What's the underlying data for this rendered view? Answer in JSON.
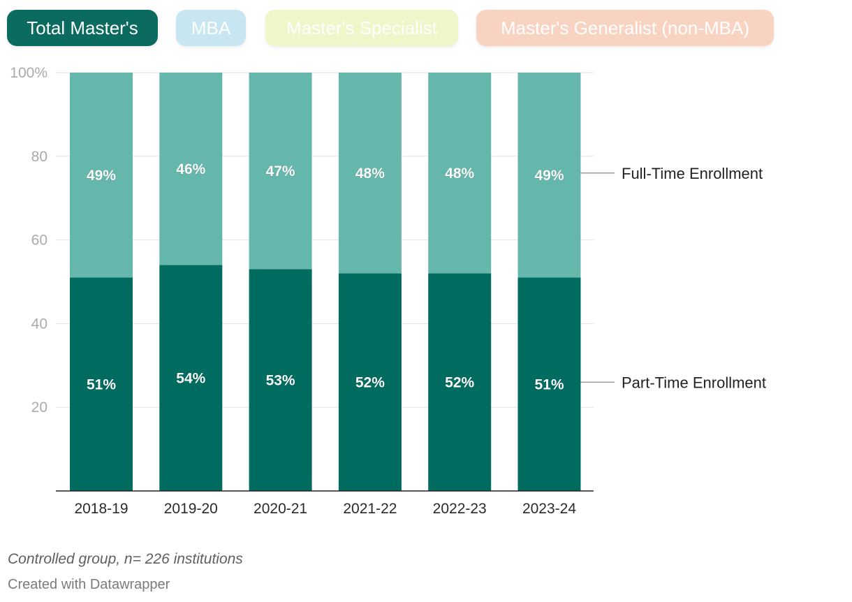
{
  "tabs": [
    {
      "label": "Total Master's",
      "bg": "#0a6b5e",
      "fg": "#ffffff",
      "active": true
    },
    {
      "label": "MBA",
      "bg": "#c7e6f2",
      "fg": "#ffffff",
      "active": false
    },
    {
      "label": "Master's Specialist",
      "bg": "#eef7c9",
      "fg": "#ffffff",
      "active": false
    },
    {
      "label": "Master's Generalist (non-MBA)",
      "bg": "#f9d3c1",
      "fg": "#ffffff",
      "active": false
    }
  ],
  "colors": {
    "part_time": "#006b5f",
    "full_time": "#66b7ab",
    "grid": "#e2e2e2",
    "axis": "#222222",
    "tick_text": "#aaaaaa",
    "category_text": "#2a2a2a"
  },
  "chart_data": {
    "type": "bar",
    "stacked": true,
    "categories": [
      "2018-19",
      "2019-20",
      "2020-21",
      "2021-22",
      "2022-23",
      "2023-24"
    ],
    "series": [
      {
        "name": "Part-Time Enrollment",
        "values": [
          51,
          54,
          53,
          52,
          52,
          51
        ],
        "labels": [
          "51%",
          "54%",
          "53%",
          "52%",
          "52%",
          "51%"
        ]
      },
      {
        "name": "Full-Time Enrollment",
        "values": [
          49,
          46,
          47,
          48,
          48,
          49
        ],
        "labels": [
          "49%",
          "46%",
          "47%",
          "48%",
          "48%",
          "49%"
        ]
      }
    ],
    "ylim": [
      0,
      100
    ],
    "yticks": [
      20,
      40,
      60,
      80,
      100
    ],
    "ytick_labels": [
      "20",
      "40",
      "60",
      "80",
      "100%"
    ],
    "grid": true,
    "legend": "direct labels right"
  },
  "note": "Controlled group, n= 226 institutions",
  "credit": "Created with Datawrapper"
}
